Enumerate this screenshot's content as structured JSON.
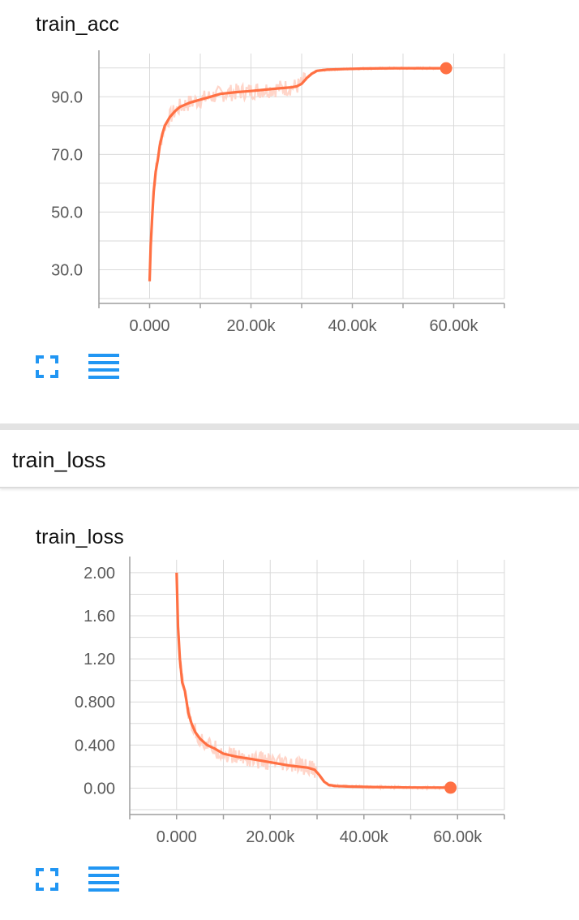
{
  "section": {
    "title": "train_loss"
  },
  "colors": {
    "accent": "#ff7043",
    "noise": "#ffcbbb",
    "grid": "#dadada",
    "icon": "#2196f3"
  },
  "icons": {
    "fit": "fit-to-screen-icon",
    "data": "data-table-icon"
  },
  "chart_data": [
    {
      "type": "line",
      "title": "train_acc",
      "xlabel": "",
      "ylabel": "",
      "xlim": [
        -10000,
        70000
      ],
      "ylim": [
        20,
        105
      ],
      "xticks": [
        0,
        20000,
        40000,
        60000
      ],
      "xtick_labels": [
        "0.000",
        "20.00k",
        "40.00k",
        "60.00k"
      ],
      "yticks": [
        30,
        50,
        70,
        90
      ],
      "ytick_labels": [
        "30.0",
        "50.0",
        "70.0",
        "90.0"
      ],
      "grid": true,
      "series": [
        {
          "smoothed": true,
          "x": [
            0,
            200,
            500,
            800,
            1200,
            1600,
            2000,
            2500,
            3000,
            4000,
            5000,
            6000,
            8000,
            10000,
            12000,
            14000,
            17000,
            20000,
            23000,
            26000,
            28000,
            29000,
            30000,
            31000,
            32000,
            33000,
            35000,
            38000,
            42000,
            48000,
            54000,
            58500
          ],
          "y": [
            26,
            38,
            48,
            57,
            64,
            68,
            73,
            77,
            80,
            83,
            85,
            86.5,
            88,
            89,
            90,
            91,
            91.6,
            92,
            92.5,
            93,
            93.3,
            93.6,
            94.5,
            96.5,
            98,
            99,
            99.4,
            99.6,
            99.8,
            99.9,
            99.9,
            99.9
          ]
        }
      ]
    },
    {
      "type": "line",
      "title": "train_loss",
      "xlabel": "",
      "ylabel": "",
      "xlim": [
        -10000,
        70000
      ],
      "ylim": [
        -0.2,
        2.12
      ],
      "xticks": [
        0,
        20000,
        40000,
        60000
      ],
      "xtick_labels": [
        "0.000",
        "20.00k",
        "40.00k",
        "60.00k"
      ],
      "yticks": [
        0,
        0.4,
        0.8,
        1.2,
        1.6,
        2.0
      ],
      "ytick_labels": [
        "0.00",
        "0.400",
        "0.800",
        "1.20",
        "1.60",
        "2.00"
      ],
      "grid": true,
      "series": [
        {
          "smoothed": true,
          "x": [
            0,
            300,
            700,
            1200,
            1800,
            2500,
            3200,
            4000,
            5000,
            6500,
            8000,
            10000,
            13000,
            16000,
            20000,
            24000,
            28000,
            29500,
            30500,
            31500,
            32500,
            34000,
            37000,
            42000,
            50000,
            58500
          ],
          "y": [
            2.0,
            1.5,
            1.2,
            0.98,
            0.9,
            0.7,
            0.6,
            0.52,
            0.46,
            0.4,
            0.37,
            0.32,
            0.29,
            0.27,
            0.24,
            0.21,
            0.19,
            0.17,
            0.12,
            0.06,
            0.03,
            0.02,
            0.015,
            0.01,
            0.006,
            0.004
          ]
        }
      ]
    }
  ]
}
